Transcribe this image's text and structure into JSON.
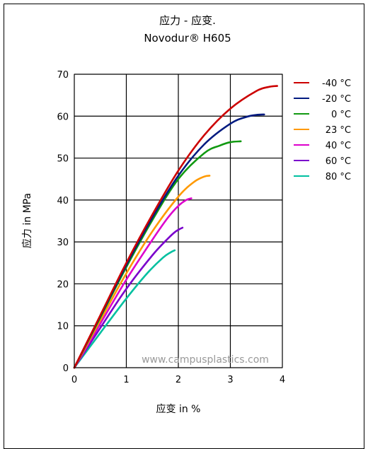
{
  "chart_data": {
    "type": "line",
    "title": "应力 - 应变.",
    "subtitle": "Novodur® H605",
    "xlabel": "应变 in %",
    "ylabel": "应力 in MPa",
    "xlim": [
      0,
      4
    ],
    "ylim": [
      0,
      70
    ],
    "xticks": [
      0,
      1,
      2,
      3,
      4
    ],
    "yticks": [
      0,
      10,
      20,
      30,
      40,
      50,
      60,
      70
    ],
    "grid": true,
    "legend_position": "right",
    "watermark": "www.campusplastics.com",
    "series": [
      {
        "name": "-40 °C",
        "color": "#cc0000",
        "x": [
          0,
          0.5,
          1.0,
          1.5,
          2.0,
          2.5,
          3.0,
          3.5,
          3.75,
          3.9
        ],
        "y": [
          0,
          12.5,
          25.0,
          36.5,
          47.0,
          55.5,
          61.8,
          66.0,
          67.0,
          67.2
        ]
      },
      {
        "name": "-20 °C",
        "color": "#001a80",
        "x": [
          0,
          0.5,
          1.0,
          1.5,
          2.0,
          2.5,
          3.0,
          3.3,
          3.5,
          3.65
        ],
        "y": [
          0,
          12.3,
          24.5,
          35.8,
          45.8,
          53.3,
          58.2,
          59.8,
          60.3,
          60.4
        ]
      },
      {
        "name": "0 °C",
        "color": "#119911",
        "x": [
          0,
          0.5,
          1.0,
          1.5,
          2.0,
          2.5,
          2.8,
          3.0,
          3.2
        ],
        "y": [
          0,
          12.0,
          24.0,
          35.2,
          45.0,
          51.2,
          53.0,
          53.8,
          54.0
        ]
      },
      {
        "name": "23 °C",
        "color": "#ff9900",
        "x": [
          0,
          0.5,
          1.0,
          1.5,
          2.0,
          2.3,
          2.5,
          2.6
        ],
        "y": [
          0,
          11.3,
          22.5,
          32.5,
          40.8,
          44.3,
          45.6,
          45.8
        ]
      },
      {
        "name": "40 °C",
        "color": "#dd00cc",
        "x": [
          0,
          0.5,
          1.0,
          1.5,
          1.8,
          2.0,
          2.15,
          2.25
        ],
        "y": [
          0,
          10.5,
          21.0,
          30.5,
          35.8,
          38.6,
          40.0,
          40.4
        ]
      },
      {
        "name": "60 °C",
        "color": "#7a00cc",
        "x": [
          0,
          0.5,
          1.0,
          1.5,
          1.8,
          1.95,
          2.08
        ],
        "y": [
          0,
          9.5,
          18.8,
          26.8,
          30.8,
          32.5,
          33.4
        ]
      },
      {
        "name": "80 °C",
        "color": "#00c0a0",
        "x": [
          0,
          0.5,
          1.0,
          1.4,
          1.7,
          1.85,
          1.93
        ],
        "y": [
          0,
          8.3,
          16.5,
          22.5,
          26.2,
          27.5,
          28.0
        ]
      }
    ]
  }
}
